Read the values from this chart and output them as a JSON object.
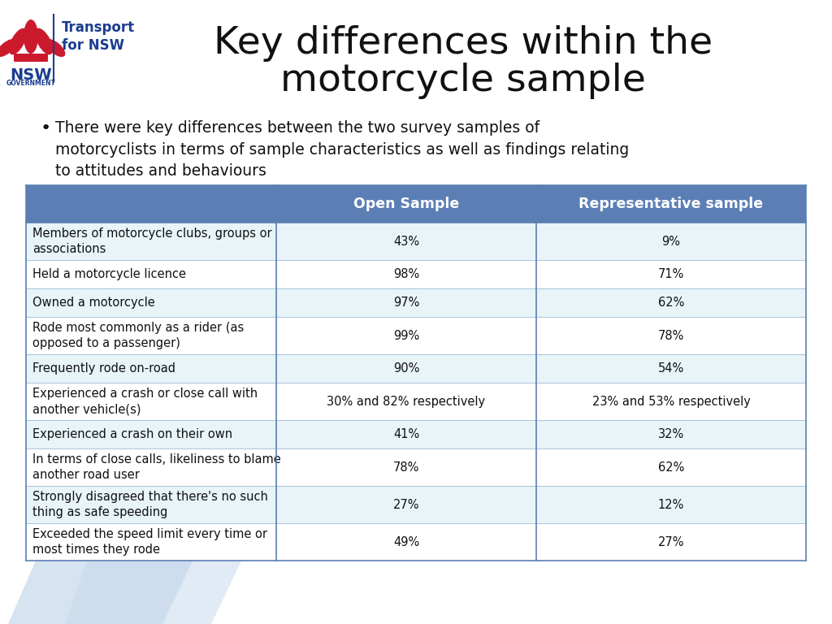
{
  "title_line1": "Key differences within the",
  "title_line2": "motorcycle sample",
  "bullet_text": "There were key differences between the two survey samples of\nmotorcyclists in terms of sample characteristics as well as findings relating\nto attitudes and behaviours",
  "header_col1": "Open Sample",
  "header_col2": "Representative sample",
  "header_bg": "#5B7FB5",
  "header_text_color": "#FFFFFF",
  "row_bg_light": "#E8F4F8",
  "row_bg_white": "#FFFFFF",
  "table_border_color": "#5B7FB5",
  "rows": [
    {
      "label": "Members of motorcycle clubs, groups or\nassociations",
      "col1": "43%",
      "col2": "9%"
    },
    {
      "label": "Held a motorcycle licence",
      "col1": "98%",
      "col2": "71%"
    },
    {
      "label": "Owned a motorcycle",
      "col1": "97%",
      "col2": "62%"
    },
    {
      "label": "Rode most commonly as a rider (as\nopposed to a passenger)",
      "col1": "99%",
      "col2": "78%"
    },
    {
      "label": "Frequently rode on-road",
      "col1": "90%",
      "col2": "54%"
    },
    {
      "label": "Experienced a crash or close call with\nanother vehicle(s)",
      "col1": "30% and 82% respectively",
      "col2": "23% and 53% respectively"
    },
    {
      "label": "Experienced a crash on their own",
      "col1": "41%",
      "col2": "32%"
    },
    {
      "label": "In terms of close calls, likeliness to blame\nanother road user",
      "col1": "78%",
      "col2": "62%"
    },
    {
      "label": "Strongly disagreed that there's no such\nthing as safe speeding",
      "col1": "27%",
      "col2": "12%"
    },
    {
      "label": "Exceeded the speed limit every time or\nmost times they rode",
      "col1": "49%",
      "col2": "27%"
    }
  ],
  "bg_color": "#FFFFFF",
  "title_fontsize": 34,
  "bullet_fontsize": 13.5,
  "header_fontsize": 12.5,
  "cell_fontsize": 10.5,
  "watermark_color": "#C5D8EC",
  "logo_nsw_color": "#CC1A2D",
  "logo_text_color": "#1B3D8F"
}
